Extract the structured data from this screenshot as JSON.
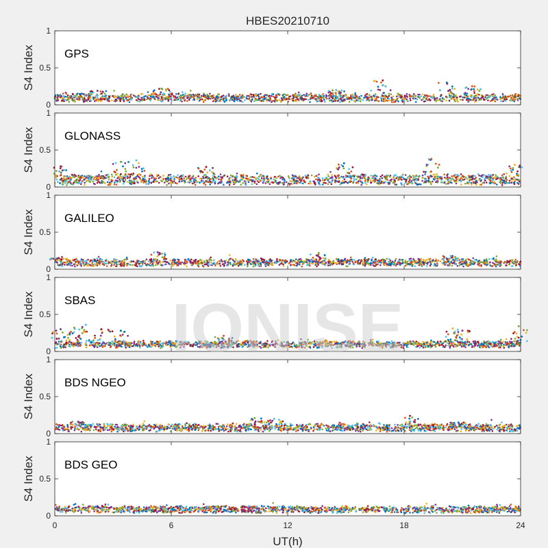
{
  "figure": {
    "title": "HBES20210710",
    "watermark": "IONISE",
    "xlabel": "UT(h)",
    "xlim": [
      0,
      24
    ],
    "xticks": [
      0,
      6,
      12,
      18,
      24
    ],
    "ylim": [
      0,
      1
    ],
    "yticks": [
      0,
      0.5,
      1
    ],
    "ytick_labels": [
      "0",
      "0.5",
      "1"
    ],
    "background_color": "#f0f0f0",
    "axes_color": "#ffffff",
    "series_colors": [
      "#0072BD",
      "#D95319",
      "#EDB120",
      "#7E2F8E",
      "#77AC30",
      "#4DBEEE",
      "#A2142F"
    ]
  },
  "chart_data": [
    {
      "type": "scatter",
      "label": "GPS",
      "ylabel": "S4 Index",
      "xlim": [
        0,
        24
      ],
      "ylim": [
        0,
        1
      ],
      "grid": false,
      "baseline": [
        0.05,
        0.14
      ],
      "peaks": [
        [
          2.2,
          0.19
        ],
        [
          5.5,
          0.22
        ],
        [
          14.5,
          0.2
        ],
        [
          16.9,
          0.33
        ],
        [
          20.2,
          0.3
        ],
        [
          21.5,
          0.25
        ]
      ]
    },
    {
      "type": "scatter",
      "label": "GLONASS",
      "ylabel": "S4 Index",
      "xlim": [
        0,
        24
      ],
      "ylim": [
        0,
        1
      ],
      "grid": false,
      "baseline": [
        0.04,
        0.16
      ],
      "peaks": [
        [
          0.3,
          0.28
        ],
        [
          3.4,
          0.34
        ],
        [
          4.2,
          0.36
        ],
        [
          7.8,
          0.27
        ],
        [
          14.9,
          0.32
        ],
        [
          19.4,
          0.38
        ],
        [
          23.7,
          0.3
        ]
      ]
    },
    {
      "type": "scatter",
      "label": "GALILEO",
      "ylabel": "S4 Index",
      "xlim": [
        0,
        24
      ],
      "ylim": [
        0,
        1
      ],
      "grid": false,
      "baseline": [
        0.05,
        0.13
      ],
      "peaks": [
        [
          5.3,
          0.23
        ],
        [
          13.6,
          0.22
        ],
        [
          20.4,
          0.18
        ],
        [
          0.2,
          0.15
        ]
      ]
    },
    {
      "type": "scatter",
      "label": "SBAS",
      "ylabel": "S4 Index",
      "xlim": [
        0,
        24
      ],
      "ylim": [
        0,
        1
      ],
      "grid": false,
      "baseline": [
        0.06,
        0.13
      ],
      "peaks": [
        [
          0.3,
          0.3
        ],
        [
          1.0,
          0.32
        ],
        [
          1.6,
          0.36
        ],
        [
          2.4,
          0.3
        ],
        [
          3.4,
          0.28
        ],
        [
          8.7,
          0.21
        ],
        [
          20.5,
          0.31
        ],
        [
          21.0,
          0.28
        ],
        [
          23.9,
          0.34
        ]
      ]
    },
    {
      "type": "scatter",
      "label": "BDS NGEO",
      "ylabel": "S4 Index",
      "xlim": [
        0,
        24
      ],
      "ylim": [
        0,
        1
      ],
      "grid": false,
      "baseline": [
        0.04,
        0.12
      ],
      "peaks": [
        [
          1.2,
          0.16
        ],
        [
          10.3,
          0.21
        ],
        [
          11.3,
          0.2
        ],
        [
          18.3,
          0.24
        ],
        [
          20.8,
          0.15
        ]
      ]
    },
    {
      "type": "scatter",
      "label": "BDS GEO",
      "ylabel": "S4 Index",
      "xlim": [
        0,
        24
      ],
      "ylim": [
        0,
        1
      ],
      "grid": false,
      "baseline": [
        0.05,
        0.12
      ],
      "peaks": [
        [
          2.2,
          0.13
        ],
        [
          8.4,
          0.13
        ],
        [
          10.0,
          0.13
        ]
      ]
    }
  ]
}
